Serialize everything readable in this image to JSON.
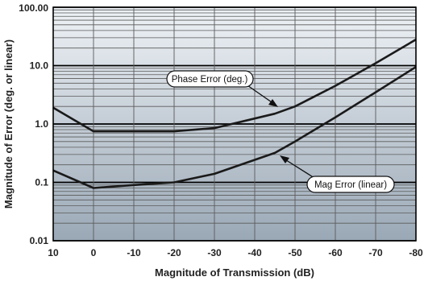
{
  "chart_data": {
    "type": "line",
    "xlabel": "Magnitude of Transmission (dB)",
    "ylabel": "Magnitude of Error (deg. or linear)",
    "x_ticks": [
      10,
      0,
      -10,
      -20,
      -30,
      -40,
      -50,
      -60,
      -70,
      -80
    ],
    "xlim": [
      10,
      -80
    ],
    "y_scale": "log",
    "ylim": [
      0.01,
      100
    ],
    "y_ticks": [
      "0.01",
      "0.1",
      "1.0",
      "10.0",
      "100.00"
    ],
    "grid": true,
    "series": [
      {
        "name": "Phase Error (deg.)",
        "x": [
          10,
          0,
          -10,
          -20,
          -30,
          -45,
          -50,
          -60,
          -70,
          -80
        ],
        "y": [
          1.9,
          0.75,
          0.75,
          0.75,
          0.85,
          1.5,
          2.0,
          4.5,
          11,
          28
        ]
      },
      {
        "name": "Mag Error (linear)",
        "x": [
          10,
          0,
          -10,
          -20,
          -30,
          -45,
          -50,
          -60,
          -70,
          -80
        ],
        "y": [
          0.16,
          0.08,
          0.09,
          0.1,
          0.14,
          0.32,
          0.5,
          1.3,
          3.5,
          9.5
        ]
      }
    ],
    "colors": {
      "line": "#1a1a1a",
      "grid_minor": "#5a5a5a",
      "grid_major": "#000000",
      "plot_bg_top": "#eef2f6",
      "plot_bg_bottom": "#9aa8b6"
    }
  }
}
